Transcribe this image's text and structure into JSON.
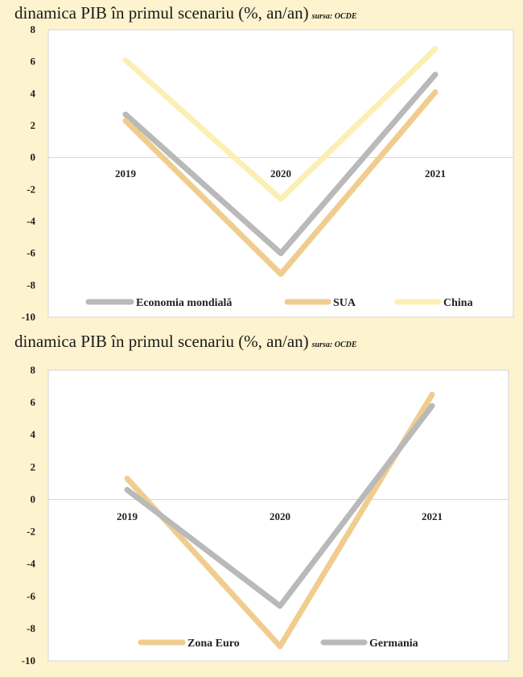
{
  "chart_data": [
    {
      "type": "line",
      "title": "dinamica PIB în primul scenariu (%, an/an)",
      "source": "sursa: OCDE",
      "categories": [
        "2019",
        "2020",
        "2021"
      ],
      "ylim": [
        -10,
        8
      ],
      "yticks": [
        8,
        6,
        4,
        2,
        0,
        -2,
        -4,
        -6,
        -8,
        -10
      ],
      "grid": false,
      "legend_position": "bottom",
      "series": [
        {
          "name": "Economia mondială",
          "values": [
            2.7,
            -6.0,
            5.2
          ],
          "color": "#b9b9b9"
        },
        {
          "name": "SUA",
          "values": [
            2.3,
            -7.3,
            4.1
          ],
          "color": "#f0cd8f"
        },
        {
          "name": "China",
          "values": [
            6.1,
            -2.6,
            6.8
          ],
          "color": "#fbefb4"
        }
      ]
    },
    {
      "type": "line",
      "title": "dinamica PIB în primul scenariu (%, an/an)",
      "source": "sursa: OCDE",
      "categories": [
        "2019",
        "2020",
        "2021"
      ],
      "ylim": [
        -10,
        8
      ],
      "yticks": [
        8,
        6,
        4,
        2,
        0,
        -2,
        -4,
        -6,
        -8,
        -10
      ],
      "grid": false,
      "legend_position": "bottom",
      "series": [
        {
          "name": "Zona Euro",
          "values": [
            1.3,
            -9.1,
            6.5
          ],
          "color": "#f0cd8f"
        },
        {
          "name": "Germania",
          "values": [
            0.6,
            -6.6,
            5.8
          ],
          "color": "#b9b9b9"
        }
      ]
    }
  ]
}
